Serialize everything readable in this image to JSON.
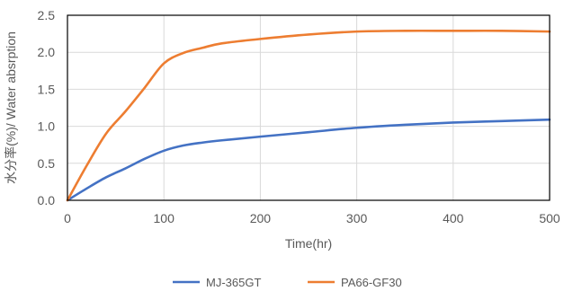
{
  "chart_data": {
    "type": "line",
    "title": "",
    "xlabel": "Time(hr)",
    "ylabel": "水分率(%)/ Water absrption",
    "xlim": [
      0,
      500
    ],
    "ylim": [
      0,
      2.5
    ],
    "x_ticks": [
      "0",
      "100",
      "200",
      "300",
      "400",
      "500"
    ],
    "y_ticks": [
      "0.0",
      "0.5",
      "1.0",
      "1.5",
      "2.0",
      "2.5"
    ],
    "grid": true,
    "legend_position": "bottom",
    "series": [
      {
        "name": "MJ-365GT",
        "color": "#4472C4",
        "points": [
          [
            0,
            0.0
          ],
          [
            20,
            0.16
          ],
          [
            40,
            0.31
          ],
          [
            60,
            0.43
          ],
          [
            80,
            0.56
          ],
          [
            100,
            0.67
          ],
          [
            120,
            0.74
          ],
          [
            140,
            0.78
          ],
          [
            160,
            0.81
          ],
          [
            200,
            0.86
          ],
          [
            250,
            0.92
          ],
          [
            300,
            0.98
          ],
          [
            350,
            1.02
          ],
          [
            400,
            1.05
          ],
          [
            450,
            1.07
          ],
          [
            500,
            1.09
          ]
        ]
      },
      {
        "name": "PA66-GF30",
        "color": "#ED7D31",
        "points": [
          [
            0,
            0.0
          ],
          [
            20,
            0.47
          ],
          [
            40,
            0.9
          ],
          [
            60,
            1.2
          ],
          [
            80,
            1.52
          ],
          [
            100,
            1.85
          ],
          [
            120,
            1.99
          ],
          [
            140,
            2.06
          ],
          [
            160,
            2.12
          ],
          [
            200,
            2.18
          ],
          [
            250,
            2.24
          ],
          [
            300,
            2.28
          ],
          [
            350,
            2.29
          ],
          [
            400,
            2.29
          ],
          [
            450,
            2.29
          ],
          [
            500,
            2.28
          ]
        ]
      }
    ]
  }
}
